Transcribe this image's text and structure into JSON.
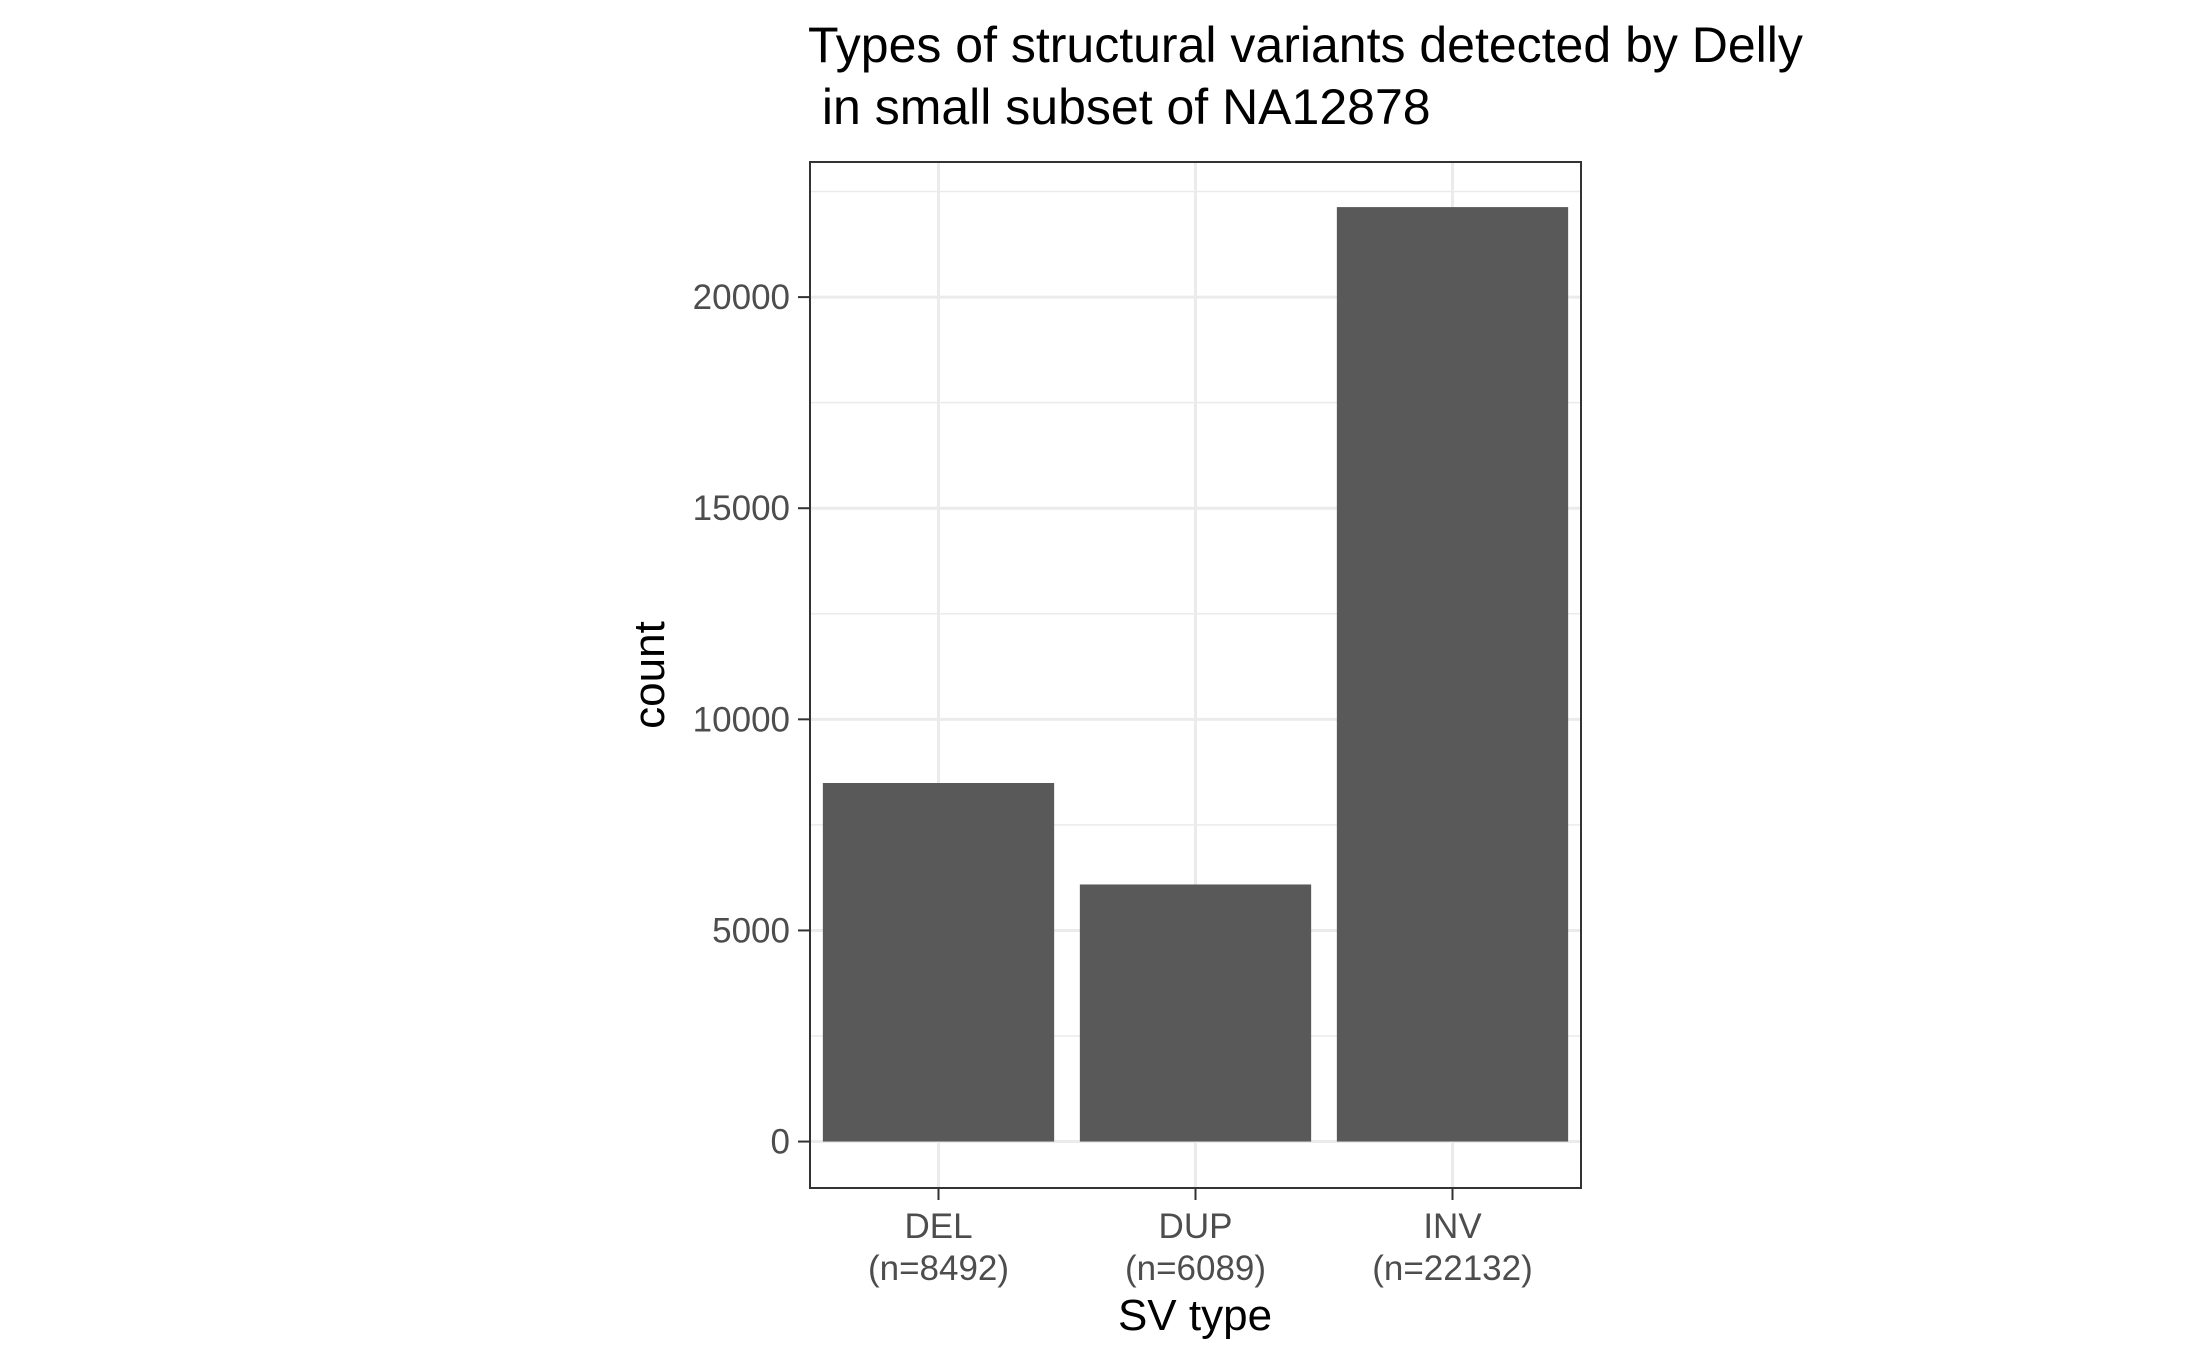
{
  "chart_data": {
    "type": "bar",
    "title_lines": [
      "Types of structural variants detected by Delly",
      " in small subset of NA12878"
    ],
    "categories": [
      {
        "label": "DEL",
        "sublabel": "(n=8492)"
      },
      {
        "label": "DUP",
        "sublabel": "(n=6089)"
      },
      {
        "label": "INV",
        "sublabel": "(n=22132)"
      }
    ],
    "values": [
      8492,
      6089,
      22132
    ],
    "xlabel": "SV type",
    "ylabel": "count",
    "yticks": [
      0,
      5000,
      10000,
      15000,
      20000
    ],
    "ylim": [
      -1100,
      23200
    ],
    "grid": true,
    "bar_color": "#595959",
    "grid_color": "#ebebeb",
    "panel_border_color": "#333333"
  }
}
